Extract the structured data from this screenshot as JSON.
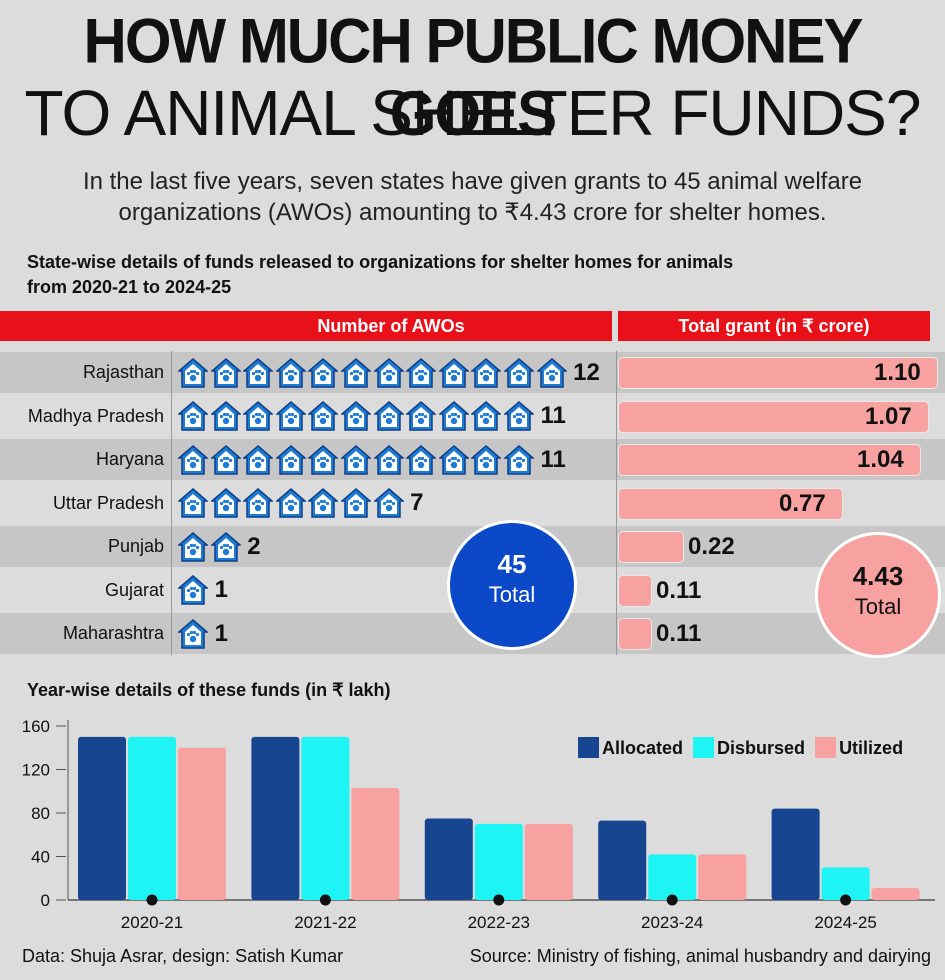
{
  "title_line1": "HOW MUCH PUBLIC MONEY GOES",
  "title_line2": "TO ANIMAL SHELTER FUNDS?",
  "subtitle_line1": "In the last five years, seven states have given grants to 45 animal welfare",
  "subtitle_line2": "organizations (AWOs) amounting to ₹4.43 crore for shelter homes.",
  "section1_title_line1": "State-wise details of funds released to organizations for shelter homes for animals",
  "section1_title_line2": "from 2020-21 to 2024-25",
  "header_awos": "Number of AWOs",
  "header_grant": "Total grant (in ₹ crore)",
  "colors": {
    "red": "#e8111a",
    "house": "#1f7ad1",
    "pink": "#f7a1a0",
    "navy": "#17458f",
    "cyan": "#1ef4f4",
    "blue_circle": "#0b49c9"
  },
  "states": [
    {
      "name": "Rajasthan",
      "awos": 12,
      "awos_label": "12",
      "grant": 1.1,
      "grant_label": "1.10"
    },
    {
      "name": "Madhya Pradesh",
      "awos": 11,
      "awos_label": "11",
      "grant": 1.07,
      "grant_label": "1.07"
    },
    {
      "name": "Haryana",
      "awos": 11,
      "awos_label": "11",
      "grant": 1.04,
      "grant_label": "1.04"
    },
    {
      "name": "Uttar Pradesh",
      "awos": 7,
      "awos_label": "7",
      "grant": 0.77,
      "grant_label": "0.77"
    },
    {
      "name": "Punjab",
      "awos": 2,
      "awos_label": "2",
      "grant": 0.22,
      "grant_label": "0.22"
    },
    {
      "name": "Gujarat",
      "awos": 1,
      "awos_label": "1",
      "grant": 0.11,
      "grant_label": "0.11"
    },
    {
      "name": "Maharashtra",
      "awos": 1,
      "awos_label": "1",
      "grant": 0.11,
      "grant_label": "0.11"
    }
  ],
  "total_awos": {
    "value": "45",
    "label": "Total"
  },
  "total_grant": {
    "value": "4.43",
    "label": "Total"
  },
  "section2_title": "Year-wise details of these funds (in ₹ lakh)",
  "chart_data": {
    "type": "bar",
    "title": "Year-wise details of these funds (in ₹ lakh)",
    "categories": [
      "2020-21",
      "2021-22",
      "2022-23",
      "2023-24",
      "2024-25"
    ],
    "series": [
      {
        "name": "Allocated",
        "color": "#17458f",
        "values": [
          150,
          150,
          75,
          73,
          84
        ]
      },
      {
        "name": "Disbursed",
        "color": "#1ef4f4",
        "values": [
          150,
          150,
          70,
          42,
          30
        ]
      },
      {
        "name": "Utilized",
        "color": "#f7a1a0",
        "values": [
          140,
          103,
          70,
          42,
          11
        ]
      }
    ],
    "yticks": [
      "0",
      "40",
      "80",
      "120",
      "160"
    ],
    "ylim": [
      0,
      160
    ],
    "legend": "top-right",
    "grid": false
  },
  "footer_left": "Data: Shuja Asrar, design: Satish Kumar",
  "footer_right": "Source: Ministry of fishing, animal husbandry and dairying"
}
